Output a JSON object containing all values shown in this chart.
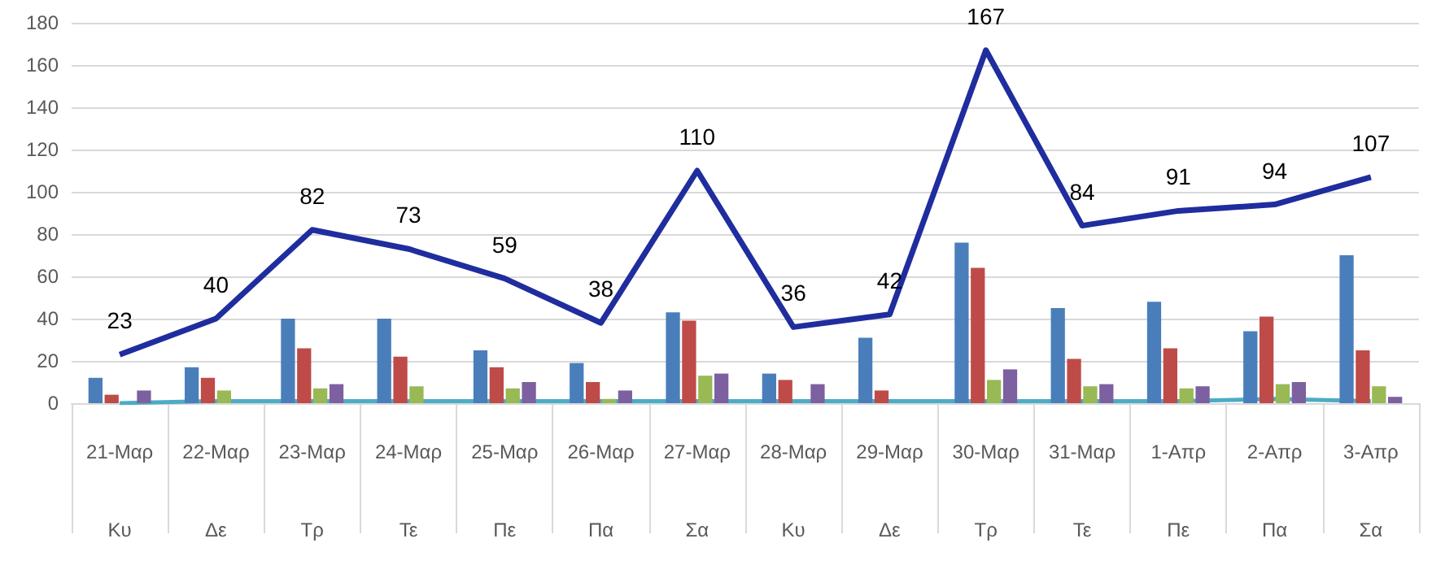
{
  "chart_data": {
    "type": "bar",
    "categories": [
      "21-Μαρ\nΚυ",
      "22-Μαρ\nΔε",
      "23-Μαρ\nΤρ",
      "24-Μαρ\nΤε",
      "25-Μαρ\nΠε",
      "26-Μαρ\nΠα",
      "27-Μαρ\nΣα",
      "28-Μαρ\nΚυ",
      "29-Μαρ\nΔε",
      "30-Μαρ\nΤρ",
      "31-Μαρ\nΤε",
      "1-Απρ\nΠε",
      "2-Απρ\nΠα",
      "3-Απρ\nΣα"
    ],
    "series": [
      {
        "color": "#4a7ebb",
        "values": [
          12,
          17,
          40,
          40,
          25,
          19,
          43,
          14,
          31,
          76,
          45,
          48,
          34,
          70
        ]
      },
      {
        "color": "#be4b48",
        "values": [
          4,
          12,
          26,
          22,
          17,
          10,
          39,
          11,
          6,
          64,
          21,
          26,
          41,
          25
        ]
      },
      {
        "color": "#98b954",
        "values": [
          0,
          6,
          7,
          8,
          7,
          2,
          13,
          0,
          0,
          11,
          8,
          7,
          9,
          8
        ]
      },
      {
        "color": "#7d60a0",
        "values": [
          6,
          0,
          9,
          0,
          10,
          6,
          14,
          9,
          0,
          16,
          9,
          8,
          10,
          3
        ]
      },
      {
        "type": "line",
        "color": "#4bacc6",
        "values": [
          0,
          1,
          1,
          1,
          1,
          1,
          1,
          1,
          1,
          1,
          1,
          1,
          2,
          1
        ]
      },
      {
        "type": "line",
        "color": "#1f2d9e",
        "values": [
          23,
          40,
          82,
          73,
          59,
          38,
          110,
          36,
          42,
          167,
          84,
          91,
          94,
          107
        ],
        "value_labels": [
          "23",
          "40",
          "82",
          "73",
          "59",
          "38",
          "110",
          "36",
          "42",
          "167",
          "84",
          "91",
          "94",
          "107"
        ]
      }
    ],
    "ylim": [
      0,
      180
    ],
    "yticks": [
      0,
      20,
      40,
      60,
      80,
      100,
      120,
      140,
      160,
      180
    ],
    "grid": "y",
    "marker": "none"
  }
}
